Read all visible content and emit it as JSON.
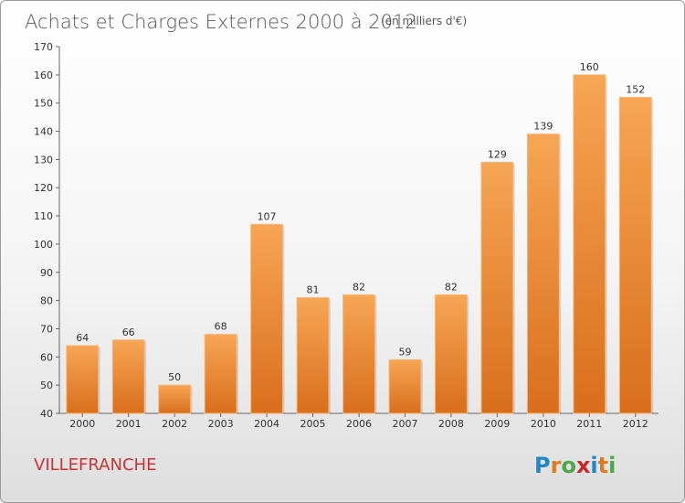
{
  "chart_data": {
    "type": "bar",
    "title": "Achats et Charges Externes 2000 à 2012",
    "subtitle": "(en milliers d'€)",
    "categories": [
      "2000",
      "2001",
      "2002",
      "2003",
      "2004",
      "2005",
      "2006",
      "2007",
      "2008",
      "2009",
      "2010",
      "2011",
      "2012"
    ],
    "values": [
      64,
      66,
      50,
      68,
      107,
      81,
      82,
      59,
      82,
      129,
      139,
      160,
      152
    ],
    "ylim": [
      40,
      170
    ],
    "yticks": [
      40,
      50,
      60,
      70,
      80,
      90,
      100,
      110,
      120,
      130,
      140,
      150,
      160,
      170
    ],
    "grid": false,
    "bar_color": "#e8802a"
  },
  "footer": {
    "town": "VILLEFRANCHE",
    "logo_letters": [
      "P",
      "r",
      "o",
      "x",
      "i",
      "t",
      "i"
    ],
    "logo_colors": [
      "#1e88c8",
      "#e07b22",
      "#4aa84a",
      "#c8282a",
      "#1e88c8",
      "#e07b22",
      "#4aa84a"
    ]
  }
}
